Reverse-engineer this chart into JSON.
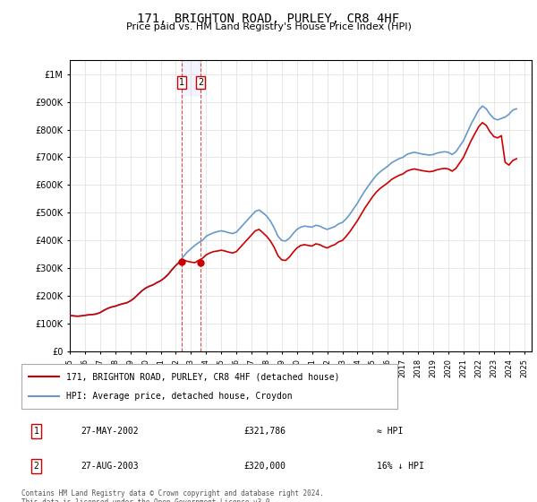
{
  "title": "171, BRIGHTON ROAD, PURLEY, CR8 4HF",
  "subtitle": "Price paid vs. HM Land Registry's House Price Index (HPI)",
  "title_fontsize": 11,
  "subtitle_fontsize": 9,
  "ylabel": "",
  "xlabel": "",
  "ylim": [
    0,
    1050000
  ],
  "xlim_start": 1995.0,
  "xlim_end": 2025.5,
  "yticks": [
    0,
    100000,
    200000,
    300000,
    400000,
    500000,
    600000,
    700000,
    800000,
    900000,
    1000000
  ],
  "ytick_labels": [
    "£0",
    "£100K",
    "£200K",
    "£300K",
    "£400K",
    "£500K",
    "£600K",
    "£700K",
    "£800K",
    "£900K",
    "£1M"
  ],
  "red_line_color": "#cc0000",
  "blue_line_color": "#6699cc",
  "marker_color": "#cc0000",
  "vline_color": "#cc0000",
  "grid_color": "#dddddd",
  "bg_color": "#ffffff",
  "legend_label_red": "171, BRIGHTON ROAD, PURLEY, CR8 4HF (detached house)",
  "legend_label_blue": "HPI: Average price, detached house, Croydon",
  "transaction1_label": "1",
  "transaction1_date": "27-MAY-2002",
  "transaction1_price": "£321,786",
  "transaction1_hpi": "≈ HPI",
  "transaction1_year": 2002.4,
  "transaction1_value": 321786,
  "transaction2_label": "2",
  "transaction2_date": "27-AUG-2003",
  "transaction2_price": "£320,000",
  "transaction2_hpi": "16% ↓ HPI",
  "transaction2_year": 2003.65,
  "transaction2_value": 320000,
  "footer_text": "Contains HM Land Registry data © Crown copyright and database right 2024.\nThis data is licensed under the Open Government Licence v3.0.",
  "hpi_data": {
    "years": [
      1995.0,
      1995.25,
      1995.5,
      1995.75,
      1996.0,
      1996.25,
      1996.5,
      1996.75,
      1997.0,
      1997.25,
      1997.5,
      1997.75,
      1998.0,
      1998.25,
      1998.5,
      1998.75,
      1999.0,
      1999.25,
      1999.5,
      1999.75,
      2000.0,
      2000.25,
      2000.5,
      2000.75,
      2001.0,
      2001.25,
      2001.5,
      2001.75,
      2002.0,
      2002.25,
      2002.5,
      2002.75,
      2003.0,
      2003.25,
      2003.5,
      2003.75,
      2004.0,
      2004.25,
      2004.5,
      2004.75,
      2005.0,
      2005.25,
      2005.5,
      2005.75,
      2006.0,
      2006.25,
      2006.5,
      2006.75,
      2007.0,
      2007.25,
      2007.5,
      2007.75,
      2008.0,
      2008.25,
      2008.5,
      2008.75,
      2009.0,
      2009.25,
      2009.5,
      2009.75,
      2010.0,
      2010.25,
      2010.5,
      2010.75,
      2011.0,
      2011.25,
      2011.5,
      2011.75,
      2012.0,
      2012.25,
      2012.5,
      2012.75,
      2013.0,
      2013.25,
      2013.5,
      2013.75,
      2014.0,
      2014.25,
      2014.5,
      2014.75,
      2015.0,
      2015.25,
      2015.5,
      2015.75,
      2016.0,
      2016.25,
      2016.5,
      2016.75,
      2017.0,
      2017.25,
      2017.5,
      2017.75,
      2018.0,
      2018.25,
      2018.5,
      2018.75,
      2019.0,
      2019.25,
      2019.5,
      2019.75,
      2020.0,
      2020.25,
      2020.5,
      2020.75,
      2021.0,
      2021.25,
      2021.5,
      2021.75,
      2022.0,
      2022.25,
      2022.5,
      2022.75,
      2023.0,
      2023.25,
      2023.5,
      2023.75,
      2024.0,
      2024.25,
      2024.5
    ],
    "values": [
      130000,
      128000,
      127000,
      128000,
      130000,
      132000,
      133000,
      135000,
      140000,
      148000,
      155000,
      160000,
      163000,
      168000,
      172000,
      175000,
      182000,
      192000,
      205000,
      218000,
      228000,
      235000,
      240000,
      248000,
      255000,
      265000,
      278000,
      295000,
      310000,
      325000,
      342000,
      358000,
      370000,
      382000,
      392000,
      400000,
      415000,
      422000,
      428000,
      432000,
      435000,
      432000,
      428000,
      425000,
      430000,
      445000,
      460000,
      475000,
      490000,
      505000,
      510000,
      500000,
      488000,
      470000,
      445000,
      415000,
      400000,
      398000,
      408000,
      425000,
      440000,
      448000,
      452000,
      450000,
      448000,
      455000,
      452000,
      445000,
      440000,
      445000,
      450000,
      460000,
      465000,
      478000,
      495000,
      515000,
      535000,
      558000,
      580000,
      600000,
      618000,
      635000,
      648000,
      658000,
      668000,
      680000,
      688000,
      695000,
      700000,
      710000,
      715000,
      718000,
      715000,
      712000,
      710000,
      708000,
      710000,
      715000,
      718000,
      720000,
      718000,
      710000,
      720000,
      740000,
      760000,
      790000,
      820000,
      845000,
      870000,
      885000,
      875000,
      855000,
      840000,
      835000,
      840000,
      845000,
      855000,
      870000,
      875000
    ]
  },
  "red_data": {
    "years": [
      1995.0,
      1995.25,
      1995.5,
      1995.75,
      1996.0,
      1996.25,
      1996.5,
      1996.75,
      1997.0,
      1997.25,
      1997.5,
      1997.75,
      1998.0,
      1998.25,
      1998.5,
      1998.75,
      1999.0,
      1999.25,
      1999.5,
      1999.75,
      2000.0,
      2000.25,
      2000.5,
      2000.75,
      2001.0,
      2001.25,
      2001.5,
      2001.75,
      2002.0,
      2002.25,
      2002.5,
      2002.75,
      2003.0,
      2003.25,
      2003.5,
      2003.75,
      2004.0,
      2004.25,
      2004.5,
      2004.75,
      2005.0,
      2005.25,
      2005.5,
      2005.75,
      2006.0,
      2006.25,
      2006.5,
      2006.75,
      2007.0,
      2007.25,
      2007.5,
      2007.75,
      2008.0,
      2008.25,
      2008.5,
      2008.75,
      2009.0,
      2009.25,
      2009.5,
      2009.75,
      2010.0,
      2010.25,
      2010.5,
      2010.75,
      2011.0,
      2011.25,
      2011.5,
      2011.75,
      2012.0,
      2012.25,
      2012.5,
      2012.75,
      2013.0,
      2013.25,
      2013.5,
      2013.75,
      2014.0,
      2014.25,
      2014.5,
      2014.75,
      2015.0,
      2015.25,
      2015.5,
      2015.75,
      2016.0,
      2016.25,
      2016.5,
      2016.75,
      2017.0,
      2017.25,
      2017.5,
      2017.75,
      2018.0,
      2018.25,
      2018.5,
      2018.75,
      2019.0,
      2019.25,
      2019.5,
      2019.75,
      2020.0,
      2020.25,
      2020.5,
      2020.75,
      2021.0,
      2021.25,
      2021.5,
      2021.75,
      2022.0,
      2022.25,
      2022.5,
      2022.75,
      2023.0,
      2023.25,
      2023.5,
      2023.75,
      2024.0,
      2024.25,
      2024.5
    ],
    "values": [
      130000,
      128000,
      127000,
      128000,
      130000,
      132000,
      133000,
      135000,
      140000,
      148000,
      155000,
      160000,
      163000,
      168000,
      172000,
      175000,
      182000,
      192000,
      205000,
      218000,
      228000,
      235000,
      240000,
      248000,
      255000,
      265000,
      278000,
      295000,
      310000,
      321786,
      330000,
      325000,
      322000,
      320000,
      328000,
      335000,
      348000,
      355000,
      360000,
      362000,
      365000,
      362000,
      358000,
      355000,
      360000,
      375000,
      390000,
      405000,
      420000,
      435000,
      440000,
      428000,
      415000,
      398000,
      375000,
      345000,
      330000,
      328000,
      340000,
      358000,
      373000,
      382000,
      385000,
      382000,
      380000,
      388000,
      385000,
      378000,
      373000,
      380000,
      385000,
      395000,
      400000,
      415000,
      432000,
      452000,
      472000,
      495000,
      518000,
      538000,
      558000,
      575000,
      588000,
      598000,
      608000,
      620000,
      628000,
      635000,
      640000,
      650000,
      655000,
      658000,
      655000,
      652000,
      650000,
      648000,
      650000,
      655000,
      658000,
      660000,
      658000,
      650000,
      660000,
      680000,
      700000,
      730000,
      760000,
      785000,
      810000,
      825000,
      815000,
      792000,
      775000,
      770000,
      778000,
      682000,
      672000,
      688000,
      695000
    ]
  }
}
